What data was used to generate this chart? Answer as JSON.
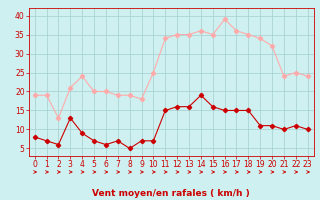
{
  "x": [
    0,
    1,
    2,
    3,
    4,
    5,
    6,
    7,
    8,
    9,
    10,
    11,
    12,
    13,
    14,
    15,
    16,
    17,
    18,
    19,
    20,
    21,
    22,
    23
  ],
  "wind_avg": [
    8,
    7,
    6,
    13,
    9,
    7,
    6,
    7,
    5,
    7,
    7,
    15,
    16,
    16,
    19,
    16,
    15,
    15,
    15,
    11,
    11,
    10,
    11,
    10
  ],
  "wind_gust": [
    19,
    19,
    13,
    21,
    24,
    20,
    20,
    19,
    19,
    18,
    25,
    34,
    35,
    35,
    36,
    35,
    39,
    36,
    35,
    34,
    32,
    24,
    25,
    24
  ],
  "bg_color": "#cff0f0",
  "grid_color": "#aad4d4",
  "line_color_avg": "#cc0000",
  "line_color_gust": "#ffaaaa",
  "xlabel": "Vent moyen/en rafales ( km/h )",
  "ylabel_ticks": [
    5,
    10,
    15,
    20,
    25,
    30,
    35,
    40
  ],
  "xlim": [
    -0.5,
    23.5
  ],
  "ylim": [
    3,
    42
  ],
  "xlabel_fontsize": 6.5,
  "tick_fontsize": 5.5
}
